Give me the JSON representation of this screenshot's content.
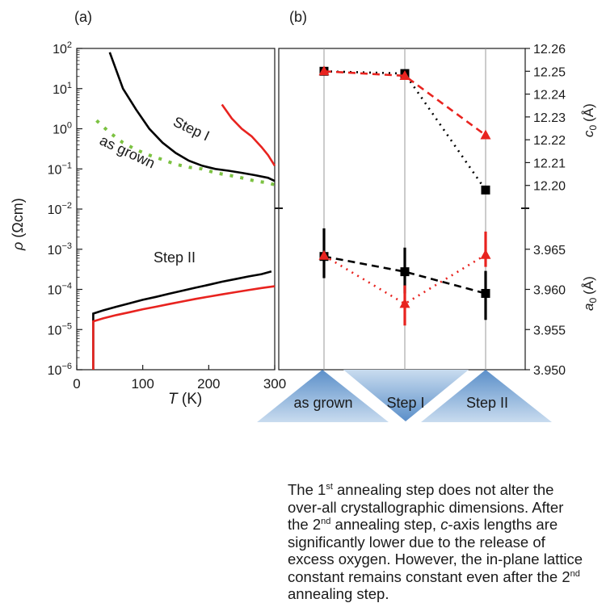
{
  "chart_data": [
    {
      "panel": "(a)",
      "type": "line",
      "xlabel_var": "T",
      "xlabel_unit": "(K)",
      "ylabel_var": "ρ",
      "ylabel_unit": "(Ωcm)",
      "xlim": [
        0,
        300
      ],
      "ylim_log10": [
        -6,
        2
      ],
      "y_scale": "log",
      "xticks": [
        "0",
        "100",
        "200",
        "300"
      ],
      "yticks": [
        {
          "base": "10",
          "exp": "2"
        },
        {
          "base": "10",
          "exp": "1"
        },
        {
          "base": "10",
          "exp": "0"
        },
        {
          "base": "10",
          "exp": "−1"
        },
        {
          "base": "10",
          "exp": "−2"
        },
        {
          "base": "10",
          "exp": "−3"
        },
        {
          "base": "10",
          "exp": "−4"
        },
        {
          "base": "10",
          "exp": "−5"
        },
        {
          "base": "10",
          "exp": "−6"
        }
      ],
      "annotations": [
        "Step I",
        "as grown",
        "Step II"
      ],
      "series": [
        {
          "color": "#000000",
          "style": "solid",
          "x": [
            50,
            70,
            90,
            110,
            130,
            150,
            170,
            190,
            210,
            230,
            250,
            270,
            290,
            300
          ],
          "y": [
            80,
            10,
            3,
            1,
            0.45,
            0.25,
            0.16,
            0.12,
            0.1,
            0.09,
            0.08,
            0.07,
            0.06,
            0.05
          ]
        },
        {
          "color": "#e8231f",
          "style": "solid",
          "x": [
            220,
            235,
            250,
            265,
            280,
            290,
            300
          ],
          "y": [
            4,
            1.8,
            1,
            0.65,
            0.35,
            0.22,
            0.12
          ]
        },
        {
          "color": "#7cc242",
          "style": "dotted",
          "x": [
            30,
            50,
            70,
            90,
            110,
            130,
            150,
            170,
            190,
            210,
            230,
            250,
            270,
            290,
            300
          ],
          "y": [
            1.6,
            0.8,
            0.45,
            0.3,
            0.22,
            0.17,
            0.13,
            0.11,
            0.1,
            0.08,
            0.07,
            0.06,
            0.05,
            0.045,
            0.04
          ]
        },
        {
          "color": "#000000",
          "style": "solid",
          "x": [
            25,
            25,
            40,
            60,
            80,
            100,
            120,
            140,
            160,
            180,
            200,
            220,
            240,
            260,
            280,
            295
          ],
          "y": [
            1e-06,
            2.5e-05,
            3e-05,
            3.7e-05,
            4.5e-05,
            5.5e-05,
            6.5e-05,
            7.8e-05,
            9.3e-05,
            0.00011,
            0.00013,
            0.000155,
            0.00018,
            0.00021,
            0.00024,
            0.00028
          ]
        },
        {
          "color": "#e8231f",
          "style": "solid",
          "x": [
            25,
            25,
            40,
            60,
            80,
            100,
            120,
            140,
            160,
            180,
            200,
            220,
            240,
            260,
            280,
            300
          ],
          "y": [
            1e-06,
            1.6e-05,
            1.9e-05,
            2.3e-05,
            2.7e-05,
            3.2e-05,
            3.7e-05,
            4.3e-05,
            5e-05,
            5.8e-05,
            6.6e-05,
            7.5e-05,
            8.5e-05,
            9.6e-05,
            0.000108,
            0.00012
          ]
        }
      ]
    },
    {
      "panel": "(b)",
      "type": "scatter",
      "categories": [
        "as grown",
        "Step I",
        "Step II"
      ],
      "axis_upper": {
        "label_var": "c",
        "label_sub": "0",
        "label_unit": "(Å)",
        "ylim": [
          12.19,
          12.26
        ],
        "ticks": [
          "12.26",
          "12.25",
          "12.24",
          "12.23",
          "12.22",
          "12.21",
          "12.20"
        ]
      },
      "axis_lower": {
        "label_var": "a",
        "label_sub": "0",
        "label_unit": "(Å)",
        "ylim": [
          3.95,
          3.97
        ],
        "ticks": [
          "3.965",
          "3.960",
          "3.955",
          "3.950"
        ]
      },
      "series": [
        {
          "axis": "upper",
          "color": "#000000",
          "marker": "square",
          "line": "dotted",
          "values": [
            12.25,
            12.249,
            12.198
          ]
        },
        {
          "axis": "upper",
          "color": "#e8231f",
          "marker": "triangle",
          "line": "dashed",
          "values": [
            12.25,
            12.248,
            12.222
          ]
        },
        {
          "axis": "lower",
          "color": "#000000",
          "marker": "square",
          "line": "dashed",
          "values": [
            3.9641,
            3.9622,
            3.9595
          ],
          "err_low": [
            3.9614,
            3.9595,
            3.9562
          ],
          "err_high": [
            3.9676,
            3.9652,
            3.9623
          ]
        },
        {
          "axis": "lower",
          "color": "#e8231f",
          "marker": "triangle",
          "line": "dotted",
          "values": [
            3.9642,
            3.9582,
            3.9643
          ],
          "err_low": [
            3.9642,
            3.9555,
            3.9628
          ],
          "err_high": [
            3.9642,
            3.9605,
            3.9672
          ]
        }
      ]
    }
  ],
  "caption": {
    "p1a": "The 1",
    "sup1": "st",
    "p1b": " annealing step does not alter the over-all crystallographic dimensions. After the 2",
    "sup2": "nd",
    "p2a": " annealing step, ",
    "italic_c": "c",
    "p2b": "-axis lengths are significantly lower due to the release of excess oxygen. However, the in-plane lattice constant remains constant even after the 2",
    "sup3": "nd",
    "p3": " annealing step."
  }
}
